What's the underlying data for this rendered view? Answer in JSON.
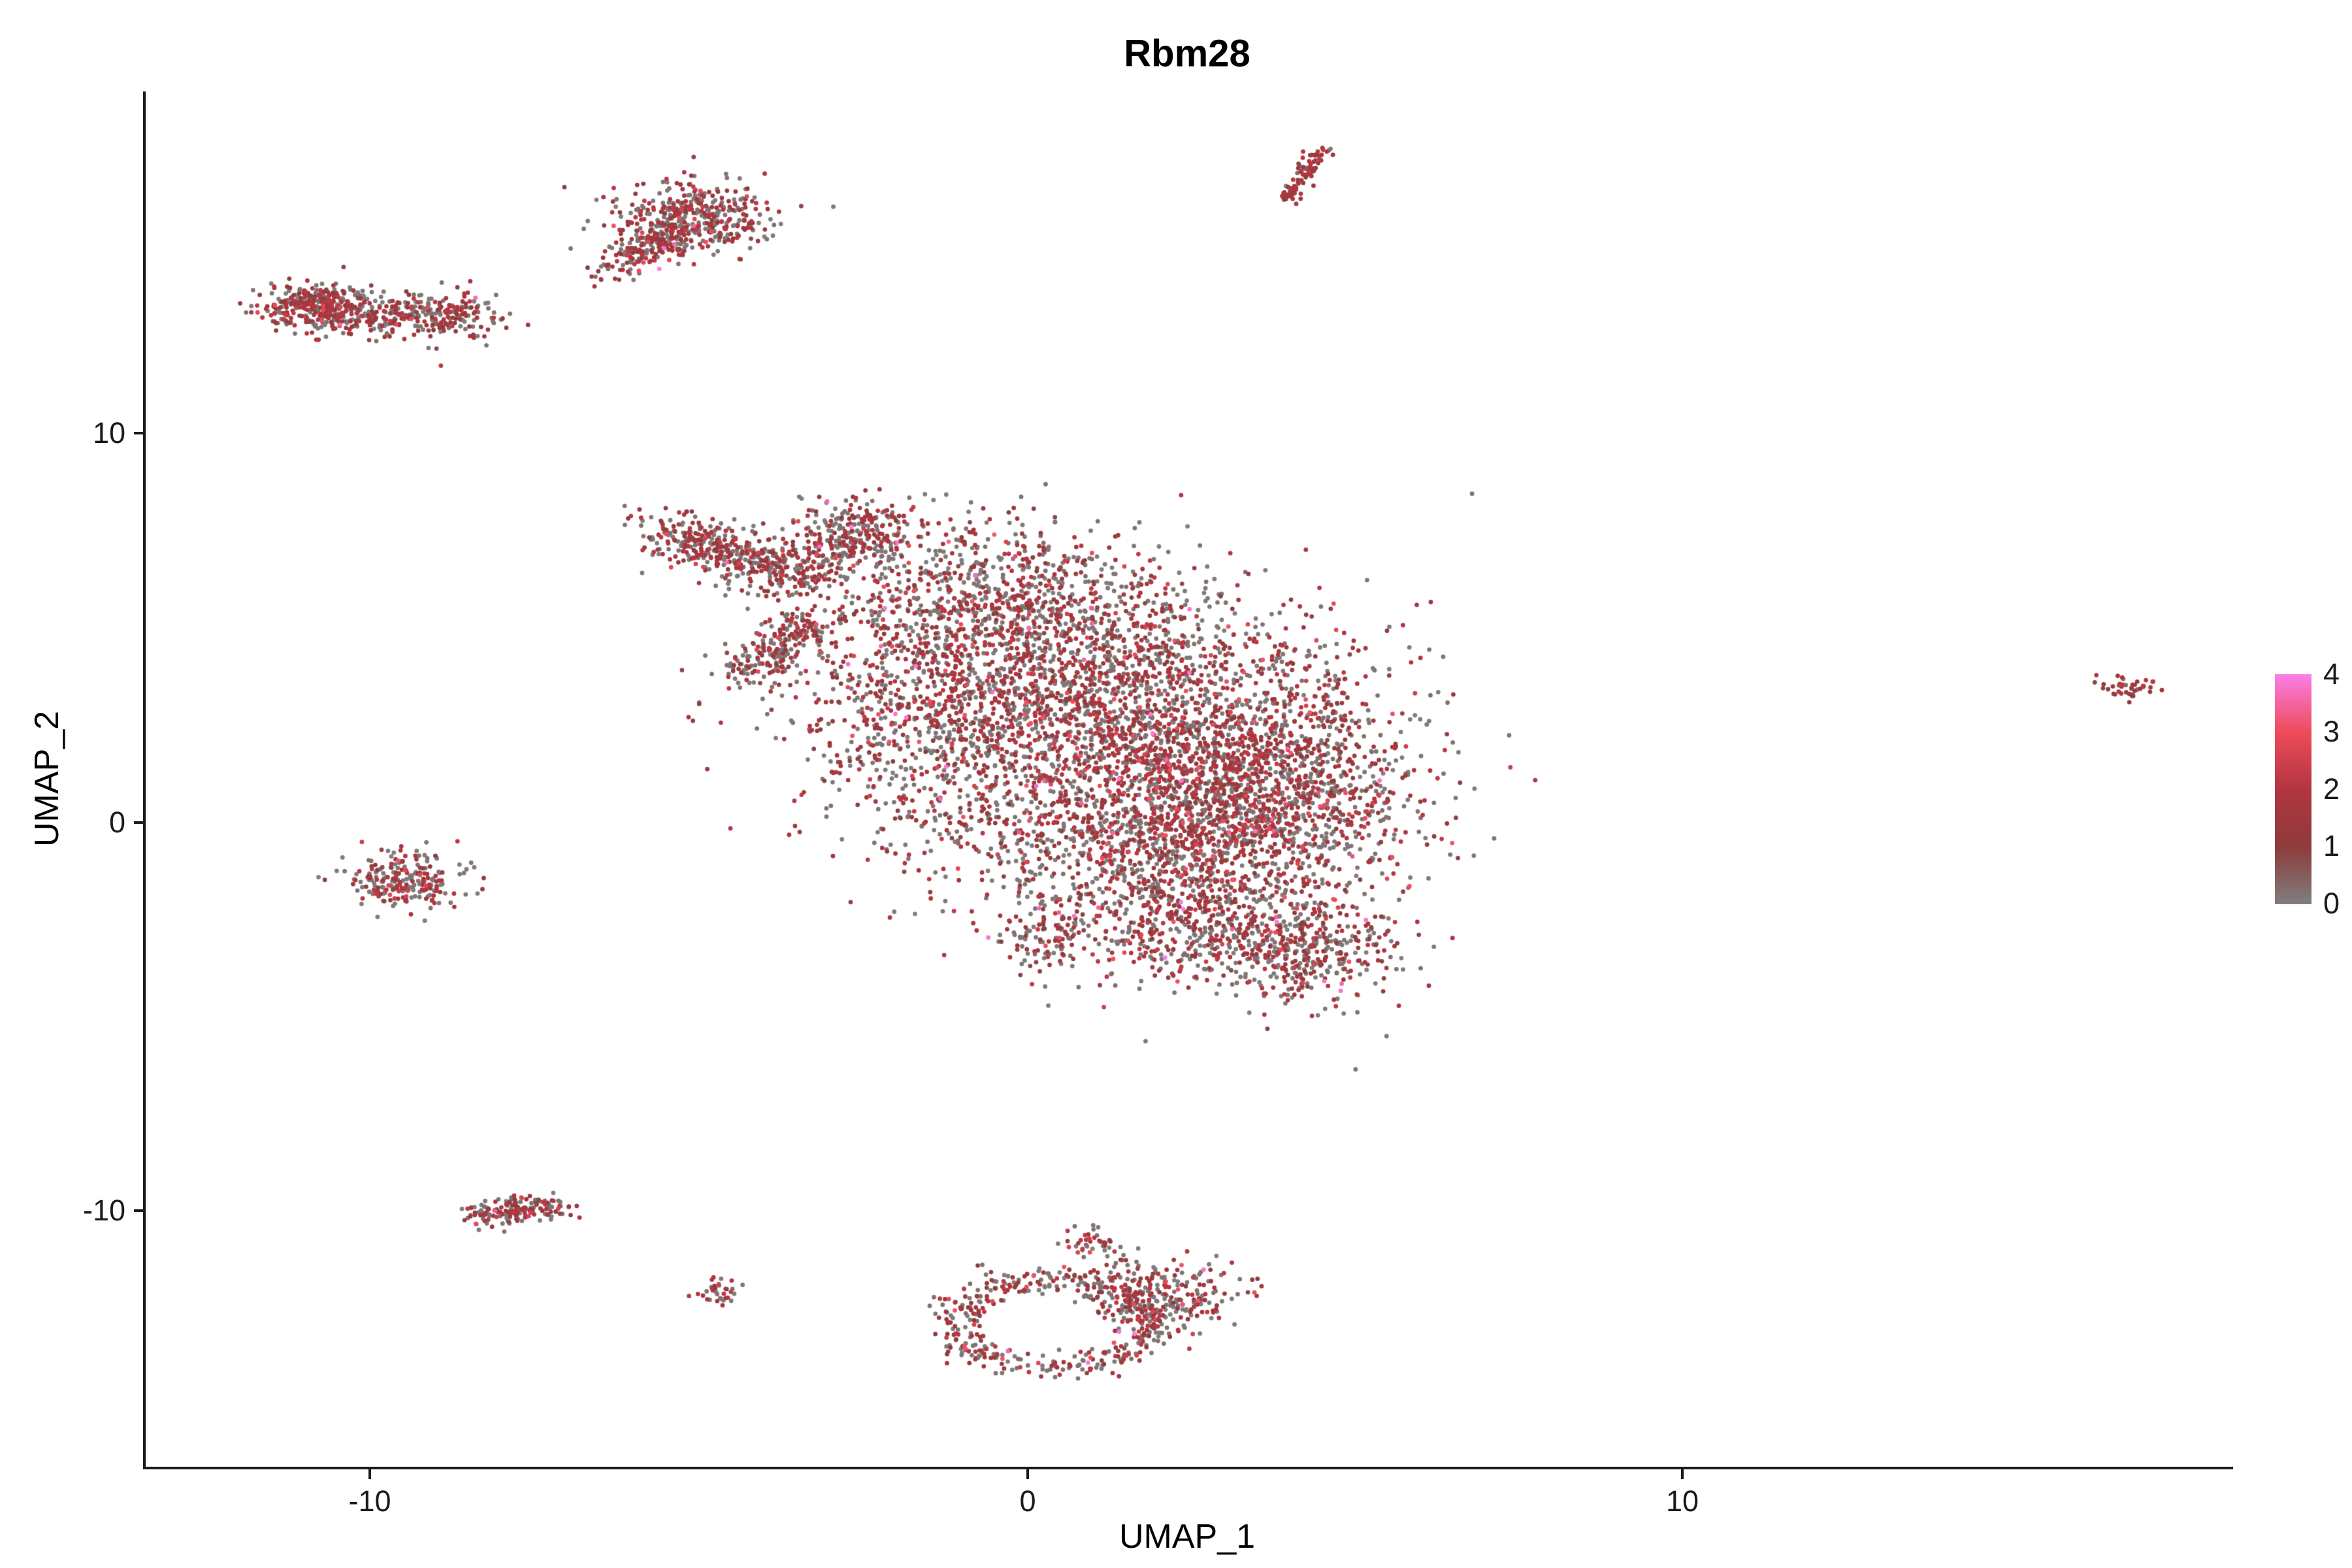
{
  "title": "Rbm28",
  "axes": {
    "x_label": "UMAP_1",
    "y_label": "UMAP_2",
    "x_ticks": [
      "-10",
      "0",
      "10"
    ],
    "y_ticks": [
      "10",
      "0",
      "-10"
    ]
  },
  "legend": {
    "ticks": [
      "4",
      "3",
      "2",
      "1",
      "0"
    ]
  },
  "chart_data": {
    "type": "scatter",
    "title": "Rbm28",
    "xlabel": "UMAP_1",
    "ylabel": "UMAP_2",
    "xlim": [
      -13.4,
      18.3
    ],
    "ylim": [
      -16.6,
      18.8
    ],
    "x_tick_values": [
      -10,
      0,
      10
    ],
    "y_tick_values": [
      10,
      0,
      -10
    ],
    "grid": false,
    "legend_position": "right",
    "colorbar": {
      "label_values": [
        0,
        1,
        2,
        3,
        4
      ],
      "stops": [
        "#7F7F7F",
        "#8E3B3B",
        "#B23540",
        "#ED4C59",
        "#FB7FE8"
      ]
    },
    "point_radius_px": 3.4,
    "seed": 42,
    "expression_mix": {
      "gray_frac": 0.46,
      "mid_frac": 0.494,
      "high_frac": 0.04,
      "very_high_frac": 0.006,
      "mid_range": [
        0.8,
        2.2
      ],
      "high_range": [
        2.2,
        3.2
      ],
      "very_high_range": [
        3.4,
        4.0
      ]
    },
    "clusters": [
      {
        "id": "central-core",
        "type": "gauss",
        "cx": 1.0,
        "cy": 3.0,
        "sx": 1.9,
        "sy": 1.6,
        "n": 2400
      },
      {
        "id": "central-right",
        "type": "gauss",
        "cx": 3.6,
        "cy": 0.8,
        "sx": 1.2,
        "sy": 1.3,
        "n": 1400
      },
      {
        "id": "central-mid-low",
        "type": "gauss",
        "cx": 1.6,
        "cy": -0.5,
        "sx": 1.5,
        "sy": 1.1,
        "n": 900
      },
      {
        "id": "central-upper",
        "type": "gauss",
        "cx": -0.6,
        "cy": 5.8,
        "sx": 1.2,
        "sy": 1.0,
        "n": 700
      },
      {
        "id": "upper-left-knob",
        "type": "gauss",
        "cx": -2.6,
        "cy": 7.4,
        "sx": 0.45,
        "sy": 0.45,
        "n": 260
      },
      {
        "id": "arm-tip",
        "type": "line",
        "x1": -5.5,
        "y1": 7.4,
        "x2": -3.2,
        "y2": 6.3,
        "jitter": 0.32,
        "n": 500
      },
      {
        "id": "arm-spur",
        "type": "line",
        "x1": -4.3,
        "y1": 3.8,
        "x2": -3.2,
        "y2": 5.2,
        "jitter": 0.28,
        "n": 240
      },
      {
        "id": "central-left-sparse",
        "type": "gauss",
        "cx": -1.6,
        "cy": 2.8,
        "sx": 1.0,
        "sy": 1.6,
        "n": 380
      },
      {
        "id": "lower-lobe",
        "type": "gauss",
        "cx": 2.6,
        "cy": -2.6,
        "sx": 1.1,
        "sy": 0.8,
        "n": 520
      },
      {
        "id": "lower-right-lobe",
        "type": "gauss",
        "cx": 4.1,
        "cy": -3.4,
        "sx": 0.75,
        "sy": 0.7,
        "n": 380
      },
      {
        "id": "bottom-spur",
        "type": "gauss",
        "cx": 0.3,
        "cy": -2.9,
        "sx": 0.35,
        "sy": 0.5,
        "n": 90
      },
      {
        "id": "top-left-band",
        "type": "line",
        "x1": -11.3,
        "y1": 13.2,
        "x2": -8.2,
        "y2": 13.0,
        "jitter": 0.28,
        "n": 430
      },
      {
        "id": "top-left-dense",
        "type": "gauss",
        "cx": -10.8,
        "cy": 13.35,
        "sx": 0.45,
        "sy": 0.28,
        "n": 220
      },
      {
        "id": "upper-mid",
        "type": "gauss",
        "cx": -5.1,
        "cy": 15.5,
        "sx": 0.62,
        "sy": 0.45,
        "n": 430
      },
      {
        "id": "upper-mid-tail",
        "type": "line",
        "x1": -6.4,
        "y1": 14.2,
        "x2": -5.3,
        "y2": 15.1,
        "jitter": 0.2,
        "n": 140
      },
      {
        "id": "top-streak",
        "type": "line",
        "x1": 3.95,
        "y1": 16.0,
        "x2": 4.5,
        "y2": 17.35,
        "jitter": 0.08,
        "n": 90,
        "hot": 1
      },
      {
        "id": "far-right-dot",
        "type": "gauss",
        "cx": 16.7,
        "cy": 3.5,
        "sx": 0.22,
        "sy": 0.17,
        "n": 42,
        "hot": 1
      },
      {
        "id": "left-mid",
        "type": "gauss",
        "cx": -9.4,
        "cy": -1.5,
        "sx": 0.45,
        "sy": 0.35,
        "n": 230
      },
      {
        "id": "bottom-left-band",
        "type": "line",
        "x1": -8.4,
        "y1": -10.15,
        "x2": -7.1,
        "y2": -9.85,
        "jitter": 0.17,
        "n": 170
      },
      {
        "id": "tiny-dot",
        "type": "gauss",
        "cx": -4.7,
        "cy": -12.1,
        "sx": 0.18,
        "sy": 0.16,
        "n": 34
      },
      {
        "id": "bottom-ring",
        "type": "ring",
        "cx": 0.4,
        "cy": -12.9,
        "rx": 1.5,
        "ry": 1.15,
        "jitter": 0.16,
        "n": 430
      },
      {
        "id": "bottom-right-blob",
        "type": "gauss",
        "cx": 2.1,
        "cy": -12.2,
        "sx": 0.55,
        "sy": 0.5,
        "n": 240
      },
      {
        "id": "bottom-knob",
        "type": "gauss",
        "cx": 1.0,
        "cy": -10.9,
        "sx": 0.2,
        "sy": 0.2,
        "n": 40
      }
    ]
  }
}
